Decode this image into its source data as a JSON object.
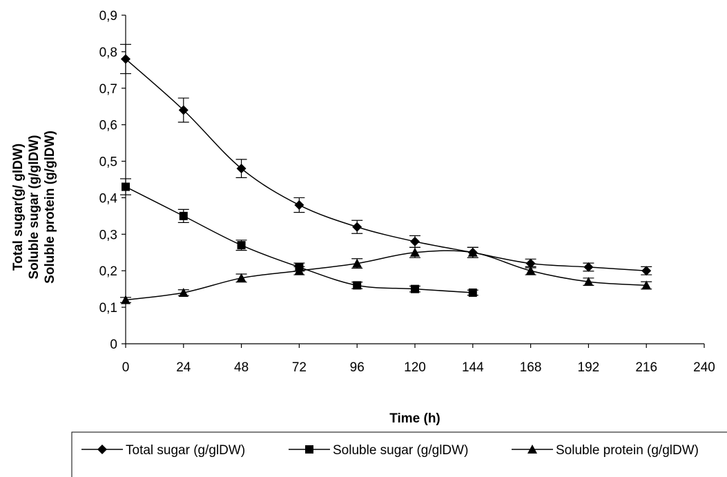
{
  "chart_data": {
    "type": "line",
    "xlabel": "Time (h)",
    "ylabel_lines": [
      "Total sugar(g/ glDW)",
      "Soluble sugar (g/glDW)",
      "Soluble protein (g/glDW)"
    ],
    "xlim": [
      0,
      240
    ],
    "ylim": [
      0,
      0.9
    ],
    "x_ticks": [
      0,
      24,
      48,
      72,
      96,
      120,
      144,
      168,
      192,
      216,
      240
    ],
    "y_ticks": [
      0,
      0.1,
      0.2,
      0.3,
      0.4,
      0.5,
      0.6,
      0.7,
      0.8,
      0.9
    ],
    "x_tick_labels": [
      "0",
      "24",
      "48",
      "72",
      "96",
      "120",
      "144",
      "168",
      "192",
      "216",
      "240"
    ],
    "y_tick_labels": [
      "0",
      "0,1",
      "0,2",
      "0,3",
      "0,4",
      "0,5",
      "0,6",
      "0,7",
      "0,8",
      "0,9"
    ],
    "grid": false,
    "legend_position": "bottom",
    "series": [
      {
        "name": "Total sugar (g/glDW)",
        "marker": "diamond",
        "color": "#000000",
        "x": [
          0,
          24,
          48,
          72,
          96,
          120,
          144,
          168,
          192,
          216
        ],
        "y": [
          0.78,
          0.64,
          0.48,
          0.38,
          0.32,
          0.28,
          0.25,
          0.22,
          0.21,
          0.2
        ],
        "error": [
          0.04,
          0.033,
          0.025,
          0.02,
          0.018,
          0.016,
          0.014,
          0.012,
          0.011,
          0.011
        ]
      },
      {
        "name": "Soluble sugar (g/glDW)",
        "marker": "square",
        "color": "#000000",
        "x": [
          0,
          24,
          48,
          72,
          96,
          120,
          144
        ],
        "y": [
          0.43,
          0.35,
          0.27,
          0.21,
          0.16,
          0.15,
          0.14
        ],
        "error": [
          0.022,
          0.018,
          0.014,
          0.011,
          0.009,
          0.008,
          0.007
        ]
      },
      {
        "name": "Soluble protein (g/glDW)",
        "marker": "triangle",
        "color": "#000000",
        "x": [
          0,
          24,
          48,
          72,
          96,
          120,
          144,
          168,
          192,
          216
        ],
        "y": [
          0.12,
          0.14,
          0.18,
          0.2,
          0.22,
          0.25,
          0.25,
          0.2,
          0.17,
          0.16
        ],
        "error": [
          0.007,
          0.008,
          0.011,
          0.011,
          0.013,
          0.014,
          0.014,
          0.011,
          0.01,
          0.01
        ]
      }
    ]
  }
}
